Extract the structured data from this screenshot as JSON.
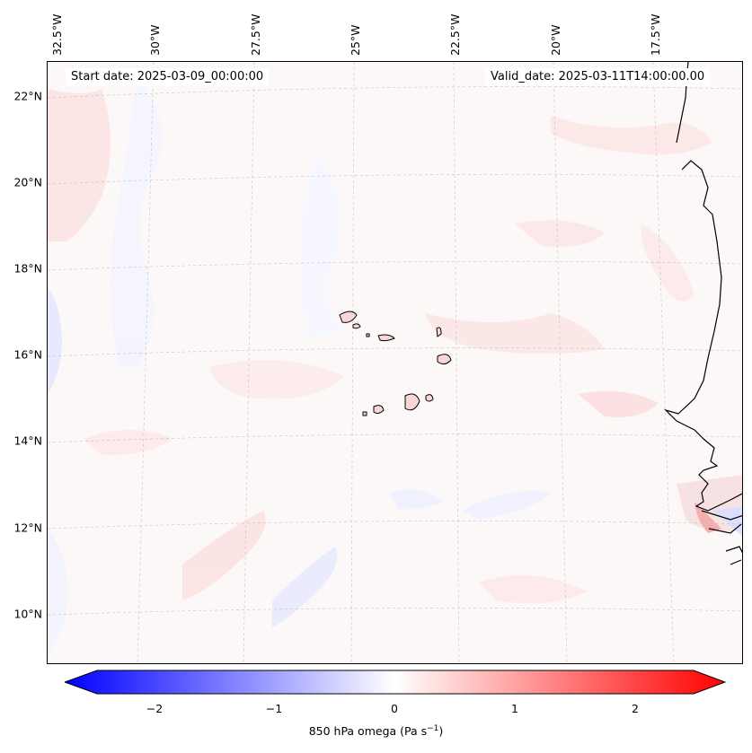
{
  "map": {
    "start_date": "Start date: 2025-03-09_00:00:00",
    "valid_date": "Valid_date: 2025-03-11T14:00:00.00",
    "lon_labels": [
      "32.5°W",
      "30°W",
      "27.5°W",
      "25°W",
      "22.5°W",
      "20°W",
      "17.5°W"
    ],
    "lat_labels": [
      "22°N",
      "20°N",
      "18°N",
      "16°N",
      "14°N",
      "12°N",
      "10°N"
    ],
    "field_colors": {
      "positive": "#ff0000",
      "negative": "#0000ff",
      "zero": "#ffffff"
    }
  },
  "colorbar": {
    "ticks": [
      "−2",
      "−1",
      "0",
      "1",
      "2"
    ],
    "label_main": "850 hPa omega (Pa s",
    "label_sup": "−1",
    "label_end": ")",
    "range": [
      -2.6,
      2.6
    ]
  }
}
